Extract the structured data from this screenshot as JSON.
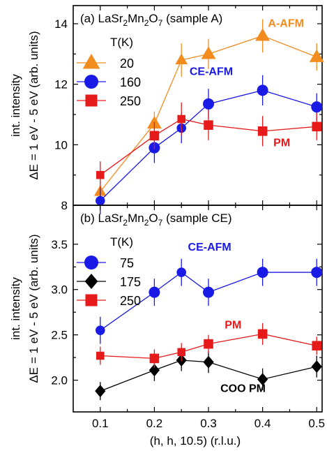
{
  "chart_data": [
    {
      "type": "line",
      "panel": "top",
      "title": "(a) LaSr2Mn2O7 (sample A)",
      "title_parts": [
        "(a) LaSr",
        "2",
        "Mn",
        "2",
        "O",
        "7",
        " (sample A)"
      ],
      "ylabel_line1": "int. intensity",
      "ylabel_line2": "ΔE = 1 eV - 5 eV (arb. units)",
      "ylim": [
        8,
        14.6
      ],
      "yticks": [
        8,
        10,
        12,
        14
      ],
      "xlim": [
        0.05,
        0.51
      ],
      "legend_title": "T(K)",
      "legend_placement": "top-left",
      "series": [
        {
          "name": "20",
          "color": "#f28c1e",
          "marker": "triangle",
          "x": [
            0.1,
            0.2,
            0.25,
            0.3,
            0.4,
            0.5
          ],
          "y": [
            8.45,
            10.7,
            12.8,
            13.0,
            13.6,
            12.9
          ],
          "err": [
            0.35,
            0.4,
            0.55,
            0.5,
            0.55,
            0.45
          ]
        },
        {
          "name": "160",
          "color": "#1a1ae6",
          "marker": "circle",
          "x": [
            0.1,
            0.2,
            0.25,
            0.3,
            0.4,
            0.5
          ],
          "y": [
            8.15,
            9.9,
            10.55,
            11.35,
            11.8,
            11.25
          ],
          "err": [
            0.45,
            0.5,
            0.5,
            0.5,
            0.5,
            0.45
          ]
        },
        {
          "name": "250",
          "color": "#e61a1a",
          "marker": "square",
          "x": [
            0.1,
            0.2,
            0.25,
            0.3,
            0.4,
            0.5
          ],
          "y": [
            9.0,
            10.3,
            10.85,
            10.65,
            10.45,
            10.6
          ],
          "err": [
            0.45,
            0.45,
            0.55,
            0.5,
            0.5,
            0.45
          ]
        }
      ],
      "annotations": [
        {
          "text": "A-AFM",
          "color": "#f28c1e",
          "x": 0.41,
          "y": 13.9
        },
        {
          "text": "CE-AFM",
          "color": "#1a1ae6",
          "x": 0.265,
          "y": 12.3
        },
        {
          "text": "PM",
          "color": "#e61a1a",
          "x": 0.42,
          "y": 9.95
        }
      ]
    },
    {
      "type": "line",
      "panel": "bottom",
      "title": "(b) LaSr2Mn2O7 (sample CE)",
      "title_parts": [
        "(b) LaSr",
        "2",
        "Mn",
        "2",
        "O",
        "7",
        " (sample CE)"
      ],
      "ylabel_line1": "int. intensity",
      "ylabel_line2": "ΔE = 1 eV - 5 eV (arb. units)",
      "ylim": [
        1.65,
        3.93
      ],
      "yticks": [
        2.0,
        2.5,
        3.0,
        3.5
      ],
      "ytick_labels": [
        "2.0",
        "2.5",
        "3.0",
        "3.5"
      ],
      "xlim": [
        0.05,
        0.51
      ],
      "xticks": [
        0.1,
        0.2,
        0.3,
        0.4,
        0.5
      ],
      "xlabel": "(h, h, 10.5) (r.l.u.)",
      "legend_title": "T(K)",
      "legend_placement": "top-left",
      "series": [
        {
          "name": "75",
          "color": "#1a1ae6",
          "marker": "circle",
          "x": [
            0.1,
            0.2,
            0.25,
            0.3,
            0.4,
            0.5
          ],
          "y": [
            2.55,
            2.97,
            3.19,
            2.97,
            3.19,
            3.19
          ],
          "err": [
            0.15,
            0.15,
            0.15,
            0.15,
            0.15,
            0.15
          ]
        },
        {
          "name": "175",
          "color": "#000000",
          "marker": "diamond",
          "x": [
            0.1,
            0.2,
            0.25,
            0.3,
            0.4,
            0.5
          ],
          "y": [
            1.88,
            2.11,
            2.22,
            2.2,
            2.01,
            2.15
          ],
          "err": [
            0.1,
            0.12,
            0.12,
            0.12,
            0.12,
            0.12
          ]
        },
        {
          "name": "250",
          "color": "#e61a1a",
          "marker": "square",
          "x": [
            0.1,
            0.2,
            0.25,
            0.3,
            0.4,
            0.5
          ],
          "y": [
            2.27,
            2.24,
            2.31,
            2.4,
            2.51,
            2.38
          ],
          "err": [
            0.1,
            0.1,
            0.1,
            0.1,
            0.12,
            0.1
          ]
        }
      ],
      "annotations": [
        {
          "text": "CE-AFM",
          "color": "#1a1ae6",
          "x": 0.262,
          "y": 3.43
        },
        {
          "text": "PM",
          "color": "#e61a1a",
          "x": 0.33,
          "y": 2.57
        },
        {
          "text": "COO PM",
          "color": "#000000",
          "x": 0.322,
          "y": 1.87
        }
      ]
    }
  ]
}
